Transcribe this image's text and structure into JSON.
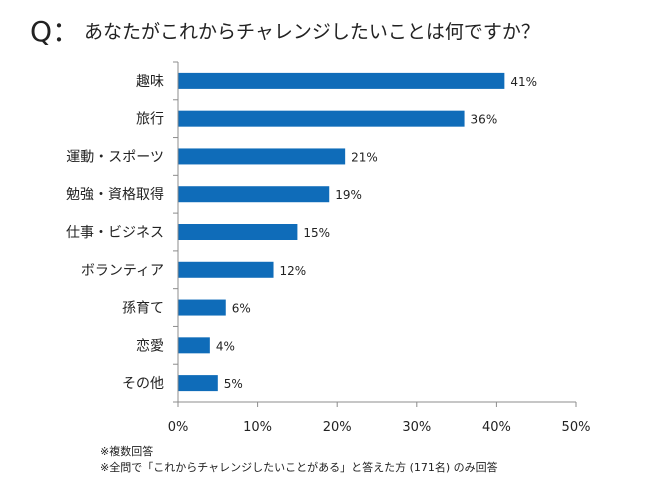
{
  "question": {
    "prefix": "Q：",
    "text": "あなたがこれからチャレンジしたいことは何ですか？"
  },
  "notes": [
    "※複数回答",
    "※全問で「これからチャレンジしたいことがある」と答えた方 (171名) のみ回答"
  ],
  "colors": {
    "bar": "#0f6cb9",
    "axis": "#8c8c8c",
    "text": "#222222"
  },
  "chart_data": {
    "type": "bar",
    "orientation": "horizontal",
    "categories": [
      "趣味",
      "旅行",
      "運動・スポーツ",
      "勉強・資格取得",
      "仕事・ビジネス",
      "ボランティア",
      "孫育て",
      "恋愛",
      "その他"
    ],
    "values": [
      41,
      36,
      21,
      19,
      15,
      12,
      6,
      4,
      5
    ],
    "value_labels": [
      "41%",
      "36%",
      "21%",
      "19%",
      "15%",
      "12%",
      "6%",
      "4%",
      "5%"
    ],
    "xlim": [
      0,
      50
    ],
    "xticks": [
      0,
      10,
      20,
      30,
      40,
      50
    ],
    "xtick_labels": [
      "0%",
      "10%",
      "20%",
      "30%",
      "40%",
      "50%"
    ],
    "grid": false,
    "legend": "none"
  }
}
